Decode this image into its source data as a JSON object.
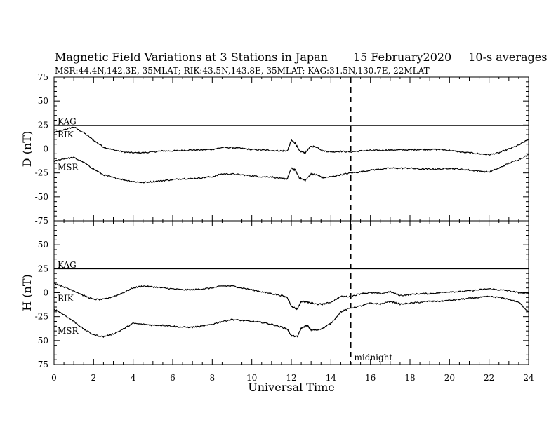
{
  "title": {
    "main": "Magnetic Field Variations at 3 Stations in Japan",
    "date": "15 February2020",
    "averaging": "10-s averages"
  },
  "subtitle": "MSR:44.4N,142.3E, 35MLAT;  RIK:43.5N,143.8E, 35MLAT;  KAG:31.5N,130.7E, 22MLAT",
  "chart_data": [
    {
      "type": "line",
      "panel": "top",
      "ylabel": "D (nT)",
      "ylim": [
        -75,
        75
      ],
      "yticks": [
        75,
        50,
        25,
        0,
        -25,
        -50,
        -75
      ],
      "xlim": [
        0,
        24
      ],
      "grid": false,
      "series": [
        {
          "name": "KAG",
          "x": [
            0,
            24
          ],
          "y": [
            24.5,
            24.5
          ]
        },
        {
          "name": "RIK",
          "x": [
            0,
            0.5,
            1,
            1.5,
            2,
            2.5,
            3,
            3.5,
            4,
            4.5,
            5,
            5.5,
            6,
            6.5,
            7,
            7.5,
            8,
            8.5,
            9,
            9.5,
            10,
            10.5,
            11,
            11.5,
            11.8,
            12,
            12.2,
            12.4,
            12.7,
            13,
            13.3,
            13.6,
            14,
            14.5,
            15,
            15.5,
            16,
            16.5,
            17,
            17.5,
            18,
            18.5,
            19,
            19.5,
            20,
            20.5,
            21,
            21.5,
            22,
            22.5,
            23,
            23.5,
            24
          ],
          "y": [
            17,
            20,
            23,
            17,
            9,
            2,
            -1,
            -3,
            -4,
            -4,
            -3,
            -2,
            -2,
            -1.5,
            -1,
            -1,
            -0.5,
            1.5,
            1.5,
            0.5,
            -0.5,
            -1,
            -1.5,
            -2,
            -2,
            9,
            6,
            -2,
            -4,
            3,
            2,
            -2,
            -3,
            -2.5,
            -3,
            -2,
            -1.5,
            -1.5,
            -1,
            -1,
            -1,
            -0.5,
            -0.5,
            -0.5,
            -1.5,
            -3,
            -4,
            -5,
            -6,
            -4,
            0,
            4,
            10
          ]
        },
        {
          "name": "MSR",
          "x": [
            0,
            0.5,
            1,
            1.5,
            2,
            2.5,
            3,
            3.5,
            4,
            4.5,
            5,
            5.5,
            6,
            6.5,
            7,
            7.5,
            8,
            8.5,
            9,
            9.5,
            10,
            10.5,
            11,
            11.5,
            11.8,
            12,
            12.2,
            12.4,
            12.7,
            13,
            13.3,
            13.6,
            14,
            14.5,
            15,
            15.5,
            16,
            16.5,
            17,
            17.5,
            18,
            18.5,
            19,
            19.5,
            20,
            20.5,
            21,
            21.5,
            22,
            22.5,
            23,
            23.5,
            24
          ],
          "y": [
            -13,
            -10,
            -9,
            -14,
            -21,
            -27,
            -30,
            -32,
            -34,
            -35,
            -34,
            -33,
            -32,
            -31,
            -31,
            -30,
            -29,
            -26,
            -26,
            -27,
            -28,
            -29,
            -29,
            -31,
            -31,
            -20,
            -22,
            -30,
            -33,
            -26,
            -27,
            -30,
            -29,
            -27,
            -25,
            -24,
            -22,
            -21,
            -20,
            -20,
            -20,
            -21,
            -21,
            -21,
            -20,
            -21,
            -22,
            -23,
            -24,
            -20,
            -15,
            -11,
            -6
          ]
        }
      ],
      "annotations": [
        "KAG",
        "RIK",
        "MSR"
      ]
    },
    {
      "type": "line",
      "panel": "bottom",
      "ylabel": "H (nT)",
      "ylim": [
        -75,
        75
      ],
      "yticks": [
        50,
        25,
        0,
        -25,
        -50,
        -75
      ],
      "xlabel": "Universal Time",
      "xlim": [
        0,
        24
      ],
      "xticks": [
        0,
        2,
        4,
        6,
        8,
        10,
        12,
        14,
        16,
        18,
        20,
        22,
        24
      ],
      "grid": false,
      "series": [
        {
          "name": "KAG",
          "x": [
            0,
            24
          ],
          "y": [
            25,
            25
          ]
        },
        {
          "name": "RIK",
          "x": [
            0,
            0.5,
            1,
            1.5,
            2,
            2.5,
            3,
            3.5,
            4,
            4.5,
            5,
            5.5,
            6,
            6.5,
            7,
            7.5,
            8,
            8.5,
            9,
            9.5,
            10,
            10.5,
            11,
            11.5,
            11.8,
            12,
            12.3,
            12.5,
            12.8,
            13,
            13.3,
            13.6,
            14,
            14.5,
            15,
            15.5,
            16,
            16.5,
            17,
            17.5,
            18,
            18.5,
            19,
            19.5,
            20,
            20.5,
            21,
            21.5,
            22,
            22.5,
            23,
            23.5,
            24
          ],
          "y": [
            10,
            6,
            2,
            -3,
            -7,
            -7,
            -4,
            0,
            5,
            7,
            6,
            5,
            4,
            3,
            3,
            4,
            5,
            7,
            7,
            5,
            3,
            1,
            -1,
            -3,
            -5,
            -14,
            -17,
            -9,
            -10,
            -11,
            -12,
            -12,
            -10,
            -4,
            -4,
            -1,
            0,
            -1,
            1,
            -3,
            -2,
            -1,
            -1,
            0,
            1,
            1,
            2,
            3,
            4,
            3,
            2,
            0,
            -1
          ]
        },
        {
          "name": "MSR",
          "x": [
            0,
            0.5,
            1,
            1.5,
            2,
            2.5,
            3,
            3.5,
            4,
            4.5,
            5,
            5.5,
            6,
            6.5,
            7,
            7.5,
            8,
            8.5,
            9,
            9.5,
            10,
            10.5,
            11,
            11.5,
            11.8,
            12,
            12.3,
            12.5,
            12.8,
            13,
            13.3,
            13.6,
            14,
            14.5,
            15,
            15.5,
            16,
            16.5,
            17,
            17.5,
            18,
            18.5,
            19,
            19.5,
            20,
            20.5,
            21,
            21.5,
            22,
            22.5,
            23,
            23.5,
            24
          ],
          "y": [
            -17,
            -23,
            -30,
            -38,
            -44,
            -46,
            -43,
            -38,
            -32,
            -33,
            -34,
            -34,
            -35,
            -36,
            -36,
            -35,
            -33,
            -30,
            -28,
            -29,
            -30,
            -31,
            -33,
            -36,
            -38,
            -45,
            -46,
            -37,
            -34,
            -39,
            -39,
            -37,
            -32,
            -20,
            -16,
            -14,
            -11,
            -12,
            -9,
            -12,
            -11,
            -10,
            -9,
            -9,
            -8,
            -7,
            -6,
            -5,
            -4,
            -5,
            -7,
            -10,
            -20
          ]
        }
      ],
      "annotations": [
        "KAG",
        "RIK",
        "MSR",
        "midnight"
      ]
    }
  ],
  "midnight_marker": {
    "x": 15,
    "label": "midnight",
    "style": "dashed"
  }
}
